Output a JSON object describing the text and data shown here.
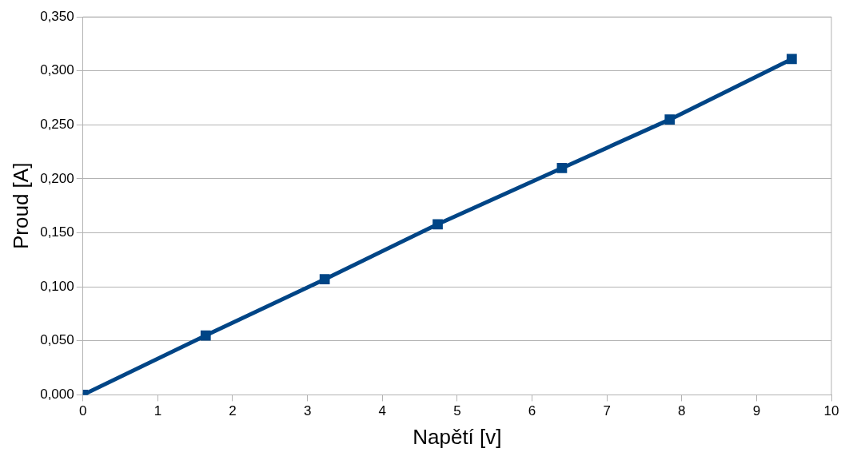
{
  "chart_data": {
    "type": "line",
    "xlabel": "Napětí [v]",
    "ylabel": "Proud [A]",
    "x": [
      0,
      1.64,
      3.23,
      4.74,
      6.4,
      7.84,
      9.47
    ],
    "series": [
      {
        "color": "#004586",
        "values": [
          0,
          0.055,
          0.107,
          0.158,
          0.21,
          0.255,
          0.311
        ]
      }
    ],
    "xlim": [
      0,
      10
    ],
    "xticks": [
      0,
      1,
      2,
      3,
      4,
      5,
      6,
      7,
      8,
      9,
      10
    ],
    "ylim": [
      0,
      0.35
    ],
    "yticks": [
      {
        "value": 0,
        "label": "0,000"
      },
      {
        "value": 0.05,
        "label": "0,050"
      },
      {
        "value": 0.1,
        "label": "0,100"
      },
      {
        "value": 0.15,
        "label": "0,150"
      },
      {
        "value": 0.2,
        "label": "0,200"
      },
      {
        "value": 0.25,
        "label": "0,250"
      },
      {
        "value": 0.3,
        "label": "0,300"
      },
      {
        "value": 0.35,
        "label": "0,350"
      }
    ],
    "grid": "y",
    "legend": false,
    "marker": "square",
    "line_style": "solid"
  }
}
